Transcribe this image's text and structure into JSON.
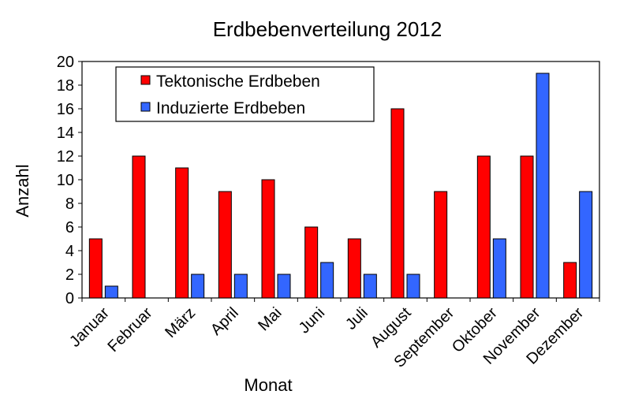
{
  "chart_data": {
    "type": "bar",
    "title": "Erdbebenverteilung 2012",
    "xlabel": "Monat",
    "ylabel": "Anzahl",
    "ylim": [
      0,
      20
    ],
    "yticks": [
      0,
      2,
      4,
      6,
      8,
      10,
      12,
      14,
      16,
      18,
      20
    ],
    "grid": false,
    "legend_position": "top-left",
    "categories": [
      "Januar",
      "Februar",
      "März",
      "April",
      "Mai",
      "Juni",
      "Juli",
      "August",
      "September",
      "Oktober",
      "November",
      "Dezember"
    ],
    "series": [
      {
        "name": "Tektonische Erdbeben",
        "color": "#ff0000",
        "values": [
          5,
          12,
          11,
          9,
          10,
          6,
          5,
          16,
          9,
          12,
          12,
          3
        ]
      },
      {
        "name": "Induzierte Erdbeben",
        "color": "#3366ff",
        "values": [
          1,
          0,
          2,
          2,
          2,
          3,
          2,
          2,
          0,
          5,
          19,
          9
        ]
      }
    ]
  }
}
